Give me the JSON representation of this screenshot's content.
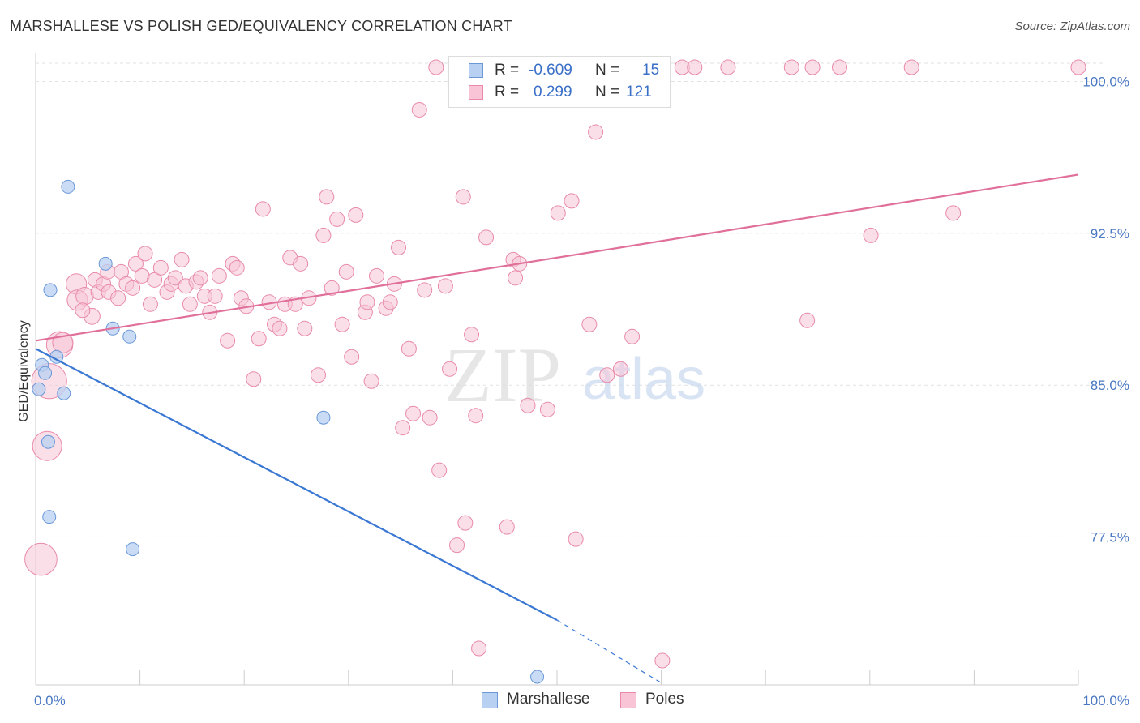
{
  "title": "MARSHALLESE VS POLISH GED/EQUIVALENCY CORRELATION CHART",
  "source": "Source: ZipAtlas.com",
  "watermark": {
    "zip": "ZIP",
    "atlas": "atlas"
  },
  "legend": {
    "rows": [
      {
        "r_label": "R =",
        "r_value": "-0.609",
        "n_label": "N =",
        "n_value": "15",
        "color": "#b8d0f2"
      },
      {
        "r_label": "R =",
        "r_value": "0.299",
        "n_label": "N =",
        "n_value": "121",
        "color": "#f8c4d6"
      }
    ]
  },
  "bottom_legend": [
    {
      "label": "Marshallese",
      "color": "#b8d0f2"
    },
    {
      "label": "Poles",
      "color": "#f8c4d6"
    }
  ],
  "chart_data": {
    "type": "scatter",
    "title": "MARSHALLESE VS POLISH GED/EQUIVALENCY CORRELATION CHART",
    "ylabel": "GED/Equivalency",
    "xlabel": "",
    "xlim": [
      0,
      100
    ],
    "ylim": [
      70.2,
      100.9
    ],
    "x_tick_labels": [
      {
        "x": 0,
        "label": "0.0%"
      },
      {
        "x": 100,
        "label": "100.0%"
      }
    ],
    "y_ticks": [
      {
        "y": 77.5,
        "label": "77.5%"
      },
      {
        "y": 85.0,
        "label": "85.0%"
      },
      {
        "y": 92.5,
        "label": "92.5%"
      },
      {
        "y": 100.0,
        "label": "100.0%"
      }
    ],
    "grid": true,
    "series": [
      {
        "name": "Marshallese",
        "color": "#6a98d8",
        "fill": "#b8d0f2",
        "trend": {
          "x0": 0,
          "y0": 86.8,
          "x1": 50,
          "y1": 73.4,
          "dash_to_x": 60,
          "dash_to_y": 70.3,
          "color": "#3a78d4"
        },
        "points": [
          {
            "x": 0.3,
            "y": 84.8,
            "s": 1
          },
          {
            "x": 0.6,
            "y": 86.0,
            "s": 1
          },
          {
            "x": 0.9,
            "y": 85.6,
            "s": 1
          },
          {
            "x": 1.2,
            "y": 82.2,
            "s": 1
          },
          {
            "x": 1.3,
            "y": 78.5,
            "s": 1
          },
          {
            "x": 1.4,
            "y": 89.7,
            "s": 1
          },
          {
            "x": 2.0,
            "y": 86.4,
            "s": 1
          },
          {
            "x": 2.7,
            "y": 84.6,
            "s": 1
          },
          {
            "x": 3.1,
            "y": 94.8,
            "s": 1
          },
          {
            "x": 6.7,
            "y": 91.0,
            "s": 1
          },
          {
            "x": 7.4,
            "y": 87.8,
            "s": 1
          },
          {
            "x": 9.0,
            "y": 87.4,
            "s": 1
          },
          {
            "x": 9.3,
            "y": 76.9,
            "s": 1
          },
          {
            "x": 27.6,
            "y": 83.4,
            "s": 1
          },
          {
            "x": 48.1,
            "y": 70.6,
            "s": 1
          }
        ]
      },
      {
        "name": "Poles",
        "color": "#e88aaa",
        "fill": "#f8c4d6",
        "trend": {
          "x0": 0,
          "y0": 87.2,
          "x1": 100,
          "y1": 95.4,
          "color": "#e0709a"
        },
        "points": [
          {
            "x": 0.5,
            "y": 76.4,
            "s": 2.2
          },
          {
            "x": 1.1,
            "y": 82.0,
            "s": 2.0
          },
          {
            "x": 1.3,
            "y": 85.2,
            "s": 2.4
          },
          {
            "x": 2.3,
            "y": 87.0,
            "s": 1.8
          },
          {
            "x": 2.6,
            "y": 87.1,
            "s": 1.4
          },
          {
            "x": 3.9,
            "y": 90.0,
            "s": 1.4
          },
          {
            "x": 4.0,
            "y": 89.2,
            "s": 1.4
          },
          {
            "x": 4.7,
            "y": 89.4,
            "s": 1.2
          },
          {
            "x": 5.4,
            "y": 88.4,
            "s": 1.1
          },
          {
            "x": 4.5,
            "y": 88.7,
            "s": 1
          },
          {
            "x": 5.7,
            "y": 90.2,
            "s": 1
          },
          {
            "x": 6.0,
            "y": 89.6,
            "s": 1
          },
          {
            "x": 6.5,
            "y": 90.0,
            "s": 1
          },
          {
            "x": 6.9,
            "y": 90.6,
            "s": 1
          },
          {
            "x": 7.0,
            "y": 89.6,
            "s": 1
          },
          {
            "x": 7.9,
            "y": 89.3,
            "s": 1
          },
          {
            "x": 8.2,
            "y": 90.6,
            "s": 1
          },
          {
            "x": 8.7,
            "y": 90.0,
            "s": 1
          },
          {
            "x": 9.3,
            "y": 89.8,
            "s": 1
          },
          {
            "x": 9.6,
            "y": 91.0,
            "s": 1
          },
          {
            "x": 10.2,
            "y": 90.4,
            "s": 1
          },
          {
            "x": 10.5,
            "y": 91.5,
            "s": 1
          },
          {
            "x": 11.0,
            "y": 89.0,
            "s": 1
          },
          {
            "x": 11.4,
            "y": 90.2,
            "s": 1
          },
          {
            "x": 12.0,
            "y": 90.8,
            "s": 1
          },
          {
            "x": 12.6,
            "y": 89.6,
            "s": 1
          },
          {
            "x": 13.0,
            "y": 90.0,
            "s": 1
          },
          {
            "x": 13.4,
            "y": 90.3,
            "s": 1
          },
          {
            "x": 14.0,
            "y": 91.2,
            "s": 1
          },
          {
            "x": 14.4,
            "y": 89.9,
            "s": 1
          },
          {
            "x": 14.8,
            "y": 89.0,
            "s": 1
          },
          {
            "x": 15.4,
            "y": 90.1,
            "s": 1
          },
          {
            "x": 15.8,
            "y": 90.3,
            "s": 1
          },
          {
            "x": 16.2,
            "y": 89.4,
            "s": 1
          },
          {
            "x": 16.7,
            "y": 88.6,
            "s": 1
          },
          {
            "x": 17.2,
            "y": 89.4,
            "s": 1
          },
          {
            "x": 17.6,
            "y": 90.4,
            "s": 1
          },
          {
            "x": 18.4,
            "y": 87.2,
            "s": 1
          },
          {
            "x": 18.9,
            "y": 91.0,
            "s": 1
          },
          {
            "x": 19.3,
            "y": 90.8,
            "s": 1
          },
          {
            "x": 19.7,
            "y": 89.3,
            "s": 1
          },
          {
            "x": 20.2,
            "y": 88.9,
            "s": 1
          },
          {
            "x": 20.9,
            "y": 85.3,
            "s": 1
          },
          {
            "x": 21.4,
            "y": 87.3,
            "s": 1
          },
          {
            "x": 21.8,
            "y": 93.7,
            "s": 1
          },
          {
            "x": 22.4,
            "y": 89.1,
            "s": 1
          },
          {
            "x": 22.9,
            "y": 88.0,
            "s": 1
          },
          {
            "x": 23.4,
            "y": 87.8,
            "s": 1
          },
          {
            "x": 23.9,
            "y": 89.0,
            "s": 1
          },
          {
            "x": 24.4,
            "y": 91.3,
            "s": 1
          },
          {
            "x": 24.9,
            "y": 89.0,
            "s": 1
          },
          {
            "x": 25.4,
            "y": 91.0,
            "s": 1
          },
          {
            "x": 25.8,
            "y": 87.8,
            "s": 1
          },
          {
            "x": 26.2,
            "y": 89.3,
            "s": 1
          },
          {
            "x": 27.1,
            "y": 85.5,
            "s": 1
          },
          {
            "x": 27.6,
            "y": 92.4,
            "s": 1
          },
          {
            "x": 27.9,
            "y": 94.3,
            "s": 1
          },
          {
            "x": 28.4,
            "y": 89.8,
            "s": 1
          },
          {
            "x": 28.9,
            "y": 93.2,
            "s": 1
          },
          {
            "x": 29.4,
            "y": 88.0,
            "s": 1
          },
          {
            "x": 29.8,
            "y": 90.6,
            "s": 1
          },
          {
            "x": 30.3,
            "y": 86.4,
            "s": 1
          },
          {
            "x": 30.7,
            "y": 93.4,
            "s": 1
          },
          {
            "x": 31.6,
            "y": 88.6,
            "s": 1
          },
          {
            "x": 31.8,
            "y": 89.1,
            "s": 1
          },
          {
            "x": 32.2,
            "y": 85.2,
            "s": 1
          },
          {
            "x": 32.7,
            "y": 90.4,
            "s": 1
          },
          {
            "x": 33.6,
            "y": 88.8,
            "s": 1
          },
          {
            "x": 34.0,
            "y": 89.1,
            "s": 1
          },
          {
            "x": 34.4,
            "y": 90.0,
            "s": 1
          },
          {
            "x": 34.8,
            "y": 91.8,
            "s": 1
          },
          {
            "x": 35.2,
            "y": 82.9,
            "s": 1
          },
          {
            "x": 35.8,
            "y": 86.8,
            "s": 1
          },
          {
            "x": 36.2,
            "y": 83.6,
            "s": 1
          },
          {
            "x": 36.8,
            "y": 98.6,
            "s": 1
          },
          {
            "x": 37.3,
            "y": 89.7,
            "s": 1
          },
          {
            "x": 37.8,
            "y": 83.4,
            "s": 1
          },
          {
            "x": 38.4,
            "y": 100.7,
            "s": 1
          },
          {
            "x": 38.7,
            "y": 80.8,
            "s": 1
          },
          {
            "x": 39.3,
            "y": 89.9,
            "s": 1
          },
          {
            "x": 39.7,
            "y": 85.8,
            "s": 1
          },
          {
            "x": 40.4,
            "y": 77.1,
            "s": 1
          },
          {
            "x": 41.0,
            "y": 94.3,
            "s": 1
          },
          {
            "x": 41.2,
            "y": 78.2,
            "s": 1
          },
          {
            "x": 41.8,
            "y": 87.5,
            "s": 1
          },
          {
            "x": 42.2,
            "y": 83.5,
            "s": 1
          },
          {
            "x": 42.5,
            "y": 72.0,
            "s": 1
          },
          {
            "x": 43.2,
            "y": 92.3,
            "s": 1
          },
          {
            "x": 45.2,
            "y": 78.0,
            "s": 1
          },
          {
            "x": 45.8,
            "y": 91.2,
            "s": 1
          },
          {
            "x": 46.0,
            "y": 90.3,
            "s": 1
          },
          {
            "x": 46.4,
            "y": 91.0,
            "s": 1
          },
          {
            "x": 47.2,
            "y": 84.0,
            "s": 1
          },
          {
            "x": 47.9,
            "y": 100.7,
            "s": 1
          },
          {
            "x": 49.1,
            "y": 83.8,
            "s": 1
          },
          {
            "x": 50.1,
            "y": 93.5,
            "s": 1
          },
          {
            "x": 51.4,
            "y": 94.1,
            "s": 1
          },
          {
            "x": 51.8,
            "y": 77.4,
            "s": 1
          },
          {
            "x": 53.1,
            "y": 88.0,
            "s": 1
          },
          {
            "x": 53.7,
            "y": 97.5,
            "s": 1
          },
          {
            "x": 54.8,
            "y": 85.5,
            "s": 1
          },
          {
            "x": 55.2,
            "y": 100.7,
            "s": 1
          },
          {
            "x": 56.1,
            "y": 85.8,
            "s": 1
          },
          {
            "x": 57.2,
            "y": 87.4,
            "s": 1
          },
          {
            "x": 60.1,
            "y": 71.4,
            "s": 1
          },
          {
            "x": 62.0,
            "y": 100.7,
            "s": 1
          },
          {
            "x": 63.2,
            "y": 100.7,
            "s": 1
          },
          {
            "x": 66.4,
            "y": 100.7,
            "s": 1
          },
          {
            "x": 72.5,
            "y": 100.7,
            "s": 1
          },
          {
            "x": 74.0,
            "y": 88.2,
            "s": 1
          },
          {
            "x": 74.5,
            "y": 100.7,
            "s": 1
          },
          {
            "x": 77.1,
            "y": 100.7,
            "s": 1
          },
          {
            "x": 80.1,
            "y": 92.4,
            "s": 1
          },
          {
            "x": 84.0,
            "y": 100.7,
            "s": 1
          },
          {
            "x": 88.0,
            "y": 93.5,
            "s": 1
          },
          {
            "x": 100.0,
            "y": 100.7,
            "s": 1
          }
        ]
      }
    ]
  }
}
